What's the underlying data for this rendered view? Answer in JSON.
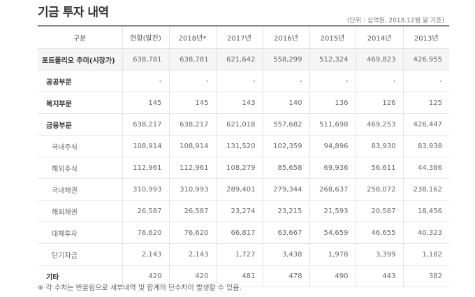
{
  "title": "기금 투자 내역",
  "unit_note": "(단위 : 십억원, 2018.12월 말 기준)",
  "table": {
    "headers": [
      "구분",
      "현황(말잔)",
      "2018년*",
      "2017년",
      "2016년",
      "2015년",
      "2014년",
      "2013년"
    ],
    "rows": [
      {
        "label": "포트폴리오 추이(시장가)",
        "level": "total",
        "values": [
          "638,781",
          "638,781",
          "621,642",
          "558,299",
          "512,324",
          "469,823",
          "426,955"
        ]
      },
      {
        "label": "공공부문",
        "level": "lvl1",
        "values": [
          "-",
          "-",
          "-",
          "-",
          "-",
          "-",
          "-"
        ]
      },
      {
        "label": "복지부문",
        "level": "lvl1",
        "values": [
          "145",
          "145",
          "143",
          "140",
          "136",
          "126",
          "125"
        ]
      },
      {
        "label": "금융부문",
        "level": "lvl1",
        "values": [
          "638,217",
          "638,217",
          "621,018",
          "557,682",
          "511,698",
          "469,253",
          "426,447"
        ]
      },
      {
        "label": "국내주식",
        "level": "lvl2",
        "values": [
          "108,914",
          "108,914",
          "131,520",
          "102,359",
          "94,896",
          "83,930",
          "83,938"
        ]
      },
      {
        "label": "해외주식",
        "level": "lvl2",
        "values": [
          "112,961",
          "112,961",
          "108,279",
          "85,658",
          "69,936",
          "56,611",
          "44,386"
        ]
      },
      {
        "label": "국내채권",
        "level": "lvl2",
        "values": [
          "310,993",
          "310,993",
          "289,401",
          "279,344",
          "268,637",
          "258,072",
          "238,162"
        ]
      },
      {
        "label": "해외채권",
        "level": "lvl2",
        "values": [
          "26,587",
          "26,587",
          "23,274",
          "23,215",
          "21,593",
          "20,587",
          "18,456"
        ]
      },
      {
        "label": "대체투자",
        "level": "lvl2",
        "values": [
          "76,620",
          "76,620",
          "66,817",
          "63,667",
          "54,659",
          "46,655",
          "40,323"
        ]
      },
      {
        "label": "단기자금",
        "level": "lvl2",
        "values": [
          "2,143",
          "2,143",
          "1,727",
          "3,438",
          "1,978",
          "3,399",
          "1,182"
        ]
      },
      {
        "label": "기타",
        "level": "lvl1",
        "values": [
          "420",
          "420",
          "481",
          "478",
          "490",
          "443",
          "382"
        ]
      }
    ]
  },
  "footnote": "※ 각 수치는 반올림으로 세부내역 및 합계의 단수차이 발생할 수 있음."
}
